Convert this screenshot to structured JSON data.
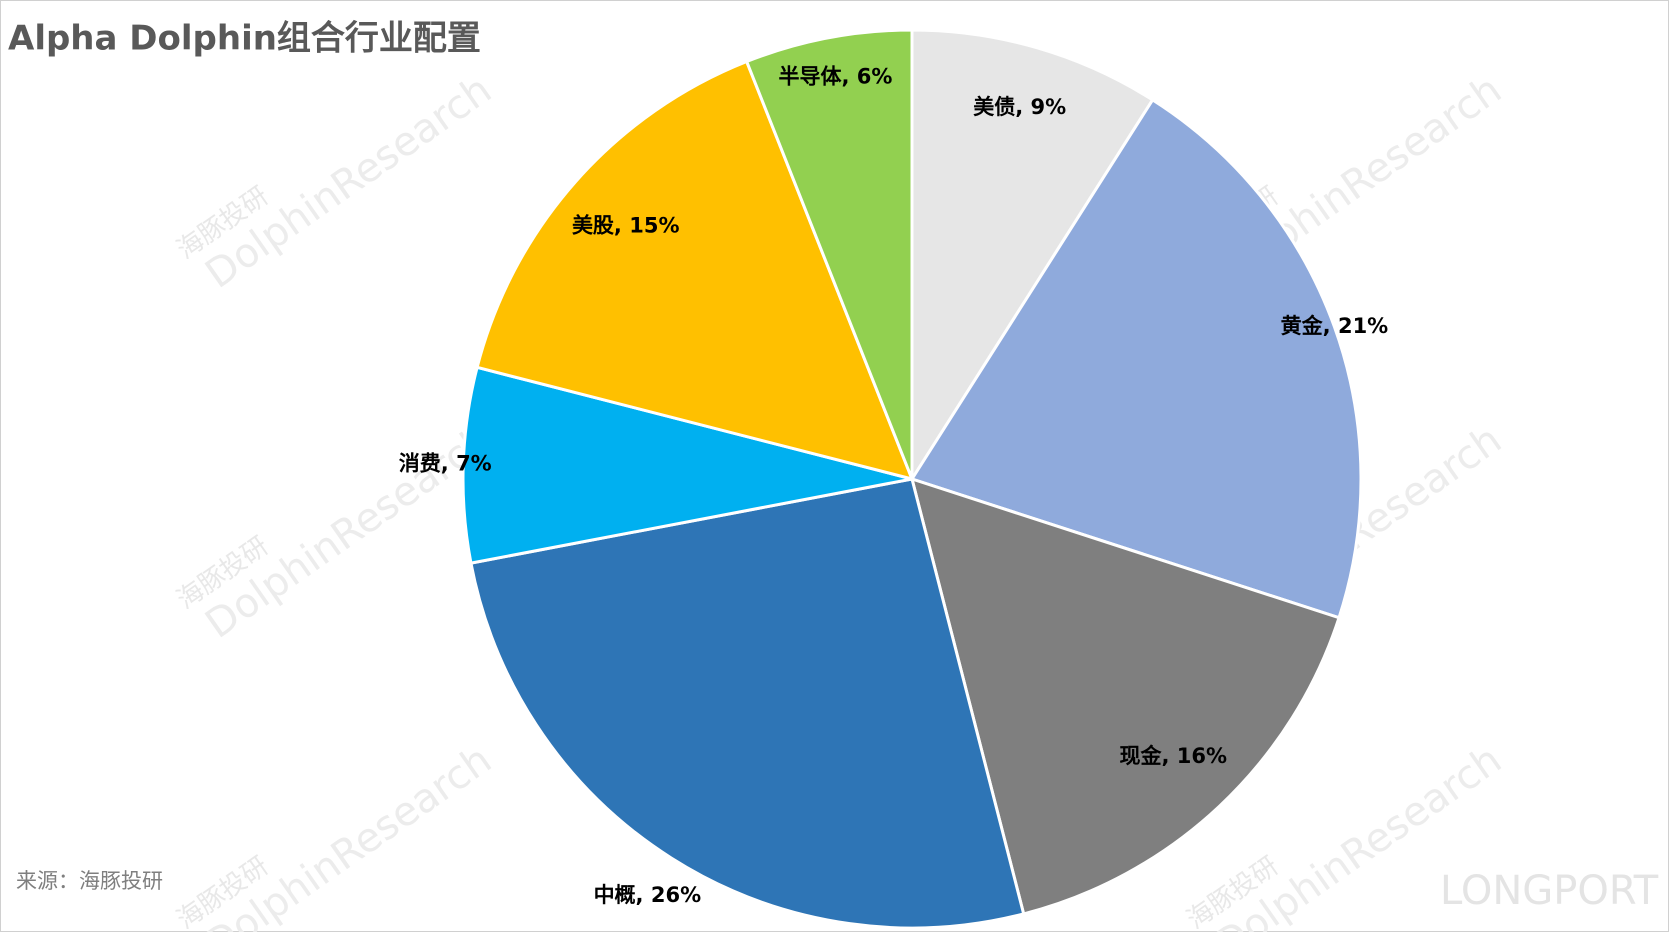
{
  "chart_data": {
    "type": "pie",
    "title": "Alpha Dolphin组合行业配置",
    "source": "来源：海豚投研",
    "watermarks": [
      "海豚投研",
      "DolphinResearch",
      "LONGPORT"
    ],
    "categories": [
      "美债",
      "黄金",
      "现金",
      "中概",
      "消费",
      "美股",
      "半导体"
    ],
    "values": [
      9,
      21,
      16,
      26,
      7,
      15,
      6
    ],
    "value_labels": [
      "美债, 9%",
      "黄金, 21%",
      "现金, 16%",
      "中概, 26%",
      "消费, 7%",
      "美股, 15%",
      "半导体, 6%"
    ],
    "colors": [
      "#e6e6e6",
      "#8faadc",
      "#7f7f7f",
      "#2e75b6",
      "#00b0f0",
      "#ffc000",
      "#92d050"
    ]
  }
}
